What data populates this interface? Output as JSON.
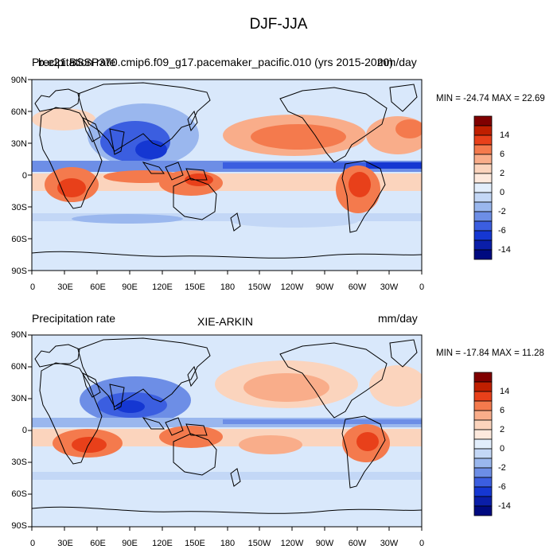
{
  "page": {
    "title": "DJF-JJA"
  },
  "panels": [
    {
      "left_title": "Precipitation rate",
      "center_title": "b.e21.BSSP370.cmip6.f09_g17.pacemaker_pacific.010 (yrs 2015-2020)",
      "right_title": "mm/day",
      "stats": "MIN = -24.74 MAX =  22.69"
    },
    {
      "left_title": "Precipitation rate",
      "center_title": "XIE-ARKIN",
      "right_title": "mm/day",
      "stats": "MIN = -17.84 MAX =  11.28"
    }
  ],
  "axes": {
    "lon_ticks": [
      "0",
      "30E",
      "60E",
      "90E",
      "120E",
      "150E",
      "180",
      "150W",
      "120W",
      "90W",
      "60W",
      "30W",
      "0"
    ],
    "lat_ticks": [
      "90N",
      "60N",
      "30N",
      "0",
      "30S",
      "60S",
      "90S"
    ]
  },
  "colorbar": {
    "labels": [
      "14",
      "6",
      "2",
      "0",
      "-2",
      "-6",
      "-14"
    ],
    "colors": [
      "#800000",
      "#c01f00",
      "#e8401a",
      "#f47a4d",
      "#f9ad8a",
      "#fbd4bd",
      "#fde9dd",
      "#e2eefc",
      "#c3d7f6",
      "#9ab7ee",
      "#6d8ee6",
      "#3b5ee0",
      "#1537d2",
      "#0a1ea8",
      "#000a80"
    ]
  },
  "palette": {
    "land_outline": "#000000",
    "neutral": "#d9e8fb"
  }
}
